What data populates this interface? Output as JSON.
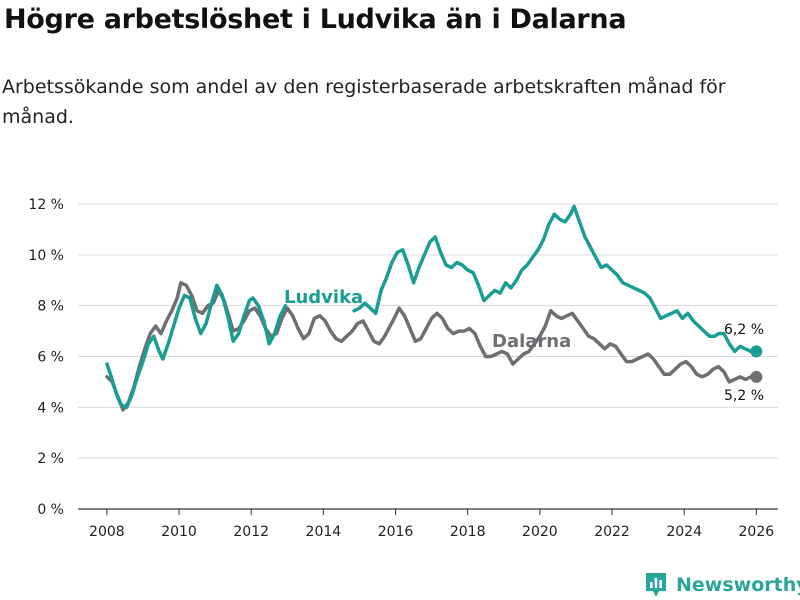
{
  "title": "Högre arbetslöshet i Ludvika än i Dalarna",
  "subtitle": "Arbetssökande som andel av den registerbaserade arbetskraften månad för månad.",
  "brand": "Newsworthy",
  "colors": {
    "ludvika": "#1a9e94",
    "dalarna": "#6f6e72",
    "grid": "#d9d9d9",
    "axis": "#333333",
    "brand": "#2aa59a"
  },
  "chart_data": {
    "type": "line",
    "title": "Högre arbetslöshet i Ludvika än i Dalarna",
    "xlabel": "",
    "ylabel": "",
    "xlim": [
      2007.2,
      2026.6
    ],
    "ylim": [
      0,
      12
    ],
    "grid": true,
    "yticks": [
      0,
      2,
      4,
      6,
      8,
      10,
      12
    ],
    "ytick_labels": [
      "0 %",
      "2 %",
      "4 %",
      "6 %",
      "8 %",
      "10 %",
      "12 %"
    ],
    "xticks": [
      2008,
      2010,
      2012,
      2014,
      2016,
      2018,
      2020,
      2022,
      2024,
      2026
    ],
    "xtick_labels": [
      "2008",
      "2010",
      "2012",
      "2014",
      "2016",
      "2018",
      "2020",
      "2022",
      "2024",
      "2026"
    ],
    "series": [
      {
        "name": "Dalarna",
        "label": "Dalarna",
        "end_label": "5,2 %",
        "points": [
          [
            2008.0,
            5.2
          ],
          [
            2008.15,
            5.0
          ],
          [
            2008.3,
            4.4
          ],
          [
            2008.45,
            3.9
          ],
          [
            2008.6,
            4.2
          ],
          [
            2008.75,
            4.8
          ],
          [
            2008.9,
            5.6
          ],
          [
            2009.05,
            6.3
          ],
          [
            2009.2,
            6.9
          ],
          [
            2009.35,
            7.2
          ],
          [
            2009.5,
            6.9
          ],
          [
            2009.65,
            7.4
          ],
          [
            2009.8,
            7.8
          ],
          [
            2009.95,
            8.3
          ],
          [
            2010.05,
            8.9
          ],
          [
            2010.2,
            8.8
          ],
          [
            2010.35,
            8.4
          ],
          [
            2010.5,
            7.8
          ],
          [
            2010.65,
            7.7
          ],
          [
            2010.8,
            8.0
          ],
          [
            2010.95,
            8.1
          ],
          [
            2011.1,
            8.6
          ],
          [
            2011.25,
            8.2
          ],
          [
            2011.4,
            7.5
          ],
          [
            2011.5,
            7.0
          ],
          [
            2011.65,
            7.1
          ],
          [
            2011.8,
            7.4
          ],
          [
            2011.95,
            7.8
          ],
          [
            2012.1,
            7.9
          ],
          [
            2012.25,
            7.6
          ],
          [
            2012.4,
            7.1
          ],
          [
            2012.55,
            6.8
          ],
          [
            2012.7,
            6.9
          ],
          [
            2012.85,
            7.5
          ],
          [
            2013.0,
            7.9
          ],
          [
            2013.15,
            7.6
          ],
          [
            2013.3,
            7.1
          ],
          [
            2013.45,
            6.7
          ],
          [
            2013.6,
            6.9
          ],
          [
            2013.75,
            7.5
          ],
          [
            2013.9,
            7.6
          ],
          [
            2014.05,
            7.4
          ],
          [
            2014.2,
            7.0
          ],
          [
            2014.35,
            6.7
          ],
          [
            2014.5,
            6.6
          ],
          [
            2014.65,
            6.8
          ],
          [
            2014.8,
            7.0
          ],
          [
            2014.95,
            7.3
          ],
          [
            2015.1,
            7.4
          ],
          [
            2015.25,
            7.0
          ],
          [
            2015.4,
            6.6
          ],
          [
            2015.55,
            6.5
          ],
          [
            2015.7,
            6.8
          ],
          [
            2015.85,
            7.2
          ],
          [
            2016.0,
            7.6
          ],
          [
            2016.1,
            7.9
          ],
          [
            2016.25,
            7.6
          ],
          [
            2016.4,
            7.1
          ],
          [
            2016.55,
            6.6
          ],
          [
            2016.7,
            6.7
          ],
          [
            2016.85,
            7.1
          ],
          [
            2017.0,
            7.5
          ],
          [
            2017.15,
            7.7
          ],
          [
            2017.3,
            7.5
          ],
          [
            2017.45,
            7.1
          ],
          [
            2017.6,
            6.9
          ],
          [
            2017.75,
            7.0
          ],
          [
            2017.9,
            7.0
          ],
          [
            2018.05,
            7.1
          ],
          [
            2018.2,
            6.9
          ],
          [
            2018.35,
            6.4
          ],
          [
            2018.5,
            6.0
          ],
          [
            2018.65,
            6.0
          ],
          [
            2018.8,
            6.1
          ],
          [
            2018.95,
            6.2
          ],
          [
            2019.1,
            6.1
          ],
          [
            2019.25,
            5.7
          ],
          [
            2019.4,
            5.9
          ],
          [
            2019.55,
            6.1
          ],
          [
            2019.7,
            6.2
          ],
          [
            2019.85,
            6.5
          ],
          [
            2020.0,
            6.8
          ],
          [
            2020.15,
            7.2
          ],
          [
            2020.3,
            7.8
          ],
          [
            2020.45,
            7.6
          ],
          [
            2020.6,
            7.5
          ],
          [
            2020.75,
            7.6
          ],
          [
            2020.9,
            7.7
          ],
          [
            2021.05,
            7.4
          ],
          [
            2021.2,
            7.1
          ],
          [
            2021.35,
            6.8
          ],
          [
            2021.5,
            6.7
          ],
          [
            2021.65,
            6.5
          ],
          [
            2021.8,
            6.3
          ],
          [
            2021.95,
            6.5
          ],
          [
            2022.1,
            6.4
          ],
          [
            2022.25,
            6.1
          ],
          [
            2022.4,
            5.8
          ],
          [
            2022.55,
            5.8
          ],
          [
            2022.7,
            5.9
          ],
          [
            2022.85,
            6.0
          ],
          [
            2023.0,
            6.1
          ],
          [
            2023.15,
            5.9
          ],
          [
            2023.3,
            5.6
          ],
          [
            2023.45,
            5.3
          ],
          [
            2023.6,
            5.3
          ],
          [
            2023.75,
            5.5
          ],
          [
            2023.9,
            5.7
          ],
          [
            2024.05,
            5.8
          ],
          [
            2024.2,
            5.6
          ],
          [
            2024.35,
            5.3
          ],
          [
            2024.5,
            5.2
          ],
          [
            2024.65,
            5.3
          ],
          [
            2024.8,
            5.5
          ],
          [
            2024.95,
            5.6
          ],
          [
            2025.1,
            5.4
          ],
          [
            2025.25,
            5.0
          ],
          [
            2025.4,
            5.1
          ],
          [
            2025.55,
            5.2
          ],
          [
            2025.7,
            5.1
          ],
          [
            2025.85,
            5.2
          ],
          [
            2026.0,
            5.2
          ]
        ]
      },
      {
        "name": "Ludvika",
        "label": "Ludvika",
        "end_label": "6,2 %",
        "points": [
          [
            2008.0,
            5.7
          ],
          [
            2008.1,
            5.3
          ],
          [
            2008.25,
            4.6
          ],
          [
            2008.4,
            4.1
          ],
          [
            2008.55,
            4.0
          ],
          [
            2008.7,
            4.5
          ],
          [
            2008.85,
            5.2
          ],
          [
            2009.0,
            5.8
          ],
          [
            2009.15,
            6.5
          ],
          [
            2009.3,
            6.8
          ],
          [
            2009.45,
            6.2
          ],
          [
            2009.55,
            5.9
          ],
          [
            2009.7,
            6.5
          ],
          [
            2009.85,
            7.2
          ],
          [
            2010.0,
            7.9
          ],
          [
            2010.15,
            8.4
          ],
          [
            2010.3,
            8.3
          ],
          [
            2010.45,
            7.5
          ],
          [
            2010.6,
            6.9
          ],
          [
            2010.75,
            7.3
          ],
          [
            2010.9,
            8.1
          ],
          [
            2011.05,
            8.8
          ],
          [
            2011.2,
            8.4
          ],
          [
            2011.35,
            7.6
          ],
          [
            2011.5,
            6.6
          ],
          [
            2011.65,
            6.9
          ],
          [
            2011.8,
            7.6
          ],
          [
            2011.95,
            8.2
          ],
          [
            2012.05,
            8.3
          ],
          [
            2012.2,
            8.0
          ],
          [
            2012.35,
            7.4
          ],
          [
            2012.5,
            6.5
          ],
          [
            2012.65,
            6.9
          ],
          [
            2012.8,
            7.6
          ],
          [
            2012.95,
            8.0
          ]
        ],
        "points_after_label": [
          [
            2014.85,
            7.8
          ],
          [
            2015.0,
            7.9
          ],
          [
            2015.15,
            8.1
          ],
          [
            2015.3,
            7.9
          ],
          [
            2015.45,
            7.7
          ],
          [
            2015.6,
            8.6
          ],
          [
            2015.75,
            9.1
          ],
          [
            2015.9,
            9.7
          ],
          [
            2016.05,
            10.1
          ],
          [
            2016.2,
            10.2
          ],
          [
            2016.35,
            9.6
          ],
          [
            2016.5,
            8.9
          ],
          [
            2016.65,
            9.5
          ],
          [
            2016.8,
            10.0
          ],
          [
            2016.95,
            10.5
          ],
          [
            2017.1,
            10.7
          ],
          [
            2017.25,
            10.1
          ],
          [
            2017.4,
            9.6
          ],
          [
            2017.55,
            9.5
          ],
          [
            2017.7,
            9.7
          ],
          [
            2017.85,
            9.6
          ],
          [
            2018.0,
            9.4
          ],
          [
            2018.15,
            9.3
          ],
          [
            2018.3,
            8.8
          ],
          [
            2018.45,
            8.2
          ],
          [
            2018.6,
            8.4
          ],
          [
            2018.75,
            8.6
          ],
          [
            2018.9,
            8.5
          ],
          [
            2019.05,
            8.9
          ],
          [
            2019.2,
            8.7
          ],
          [
            2019.35,
            9.0
          ],
          [
            2019.5,
            9.4
          ],
          [
            2019.65,
            9.6
          ],
          [
            2019.8,
            9.9
          ],
          [
            2019.95,
            10.2
          ],
          [
            2020.1,
            10.6
          ],
          [
            2020.25,
            11.2
          ],
          [
            2020.4,
            11.6
          ],
          [
            2020.55,
            11.4
          ],
          [
            2020.7,
            11.3
          ],
          [
            2020.85,
            11.6
          ],
          [
            2020.95,
            11.9
          ],
          [
            2021.1,
            11.3
          ],
          [
            2021.25,
            10.7
          ],
          [
            2021.4,
            10.3
          ],
          [
            2021.55,
            9.9
          ],
          [
            2021.7,
            9.5
          ],
          [
            2021.85,
            9.6
          ],
          [
            2022.0,
            9.4
          ],
          [
            2022.15,
            9.2
          ],
          [
            2022.3,
            8.9
          ],
          [
            2022.45,
            8.8
          ],
          [
            2022.6,
            8.7
          ],
          [
            2022.75,
            8.6
          ],
          [
            2022.9,
            8.5
          ],
          [
            2023.05,
            8.3
          ],
          [
            2023.2,
            7.9
          ],
          [
            2023.35,
            7.5
          ],
          [
            2023.5,
            7.6
          ],
          [
            2023.65,
            7.7
          ],
          [
            2023.8,
            7.8
          ],
          [
            2023.95,
            7.5
          ],
          [
            2024.1,
            7.7
          ],
          [
            2024.25,
            7.4
          ],
          [
            2024.4,
            7.2
          ],
          [
            2024.55,
            7.0
          ],
          [
            2024.7,
            6.8
          ],
          [
            2024.85,
            6.8
          ],
          [
            2024.95,
            6.9
          ],
          [
            2025.1,
            6.9
          ],
          [
            2025.25,
            6.5
          ],
          [
            2025.4,
            6.2
          ],
          [
            2025.55,
            6.4
          ],
          [
            2025.7,
            6.3
          ],
          [
            2025.85,
            6.2
          ],
          [
            2026.0,
            6.2
          ]
        ]
      }
    ]
  }
}
